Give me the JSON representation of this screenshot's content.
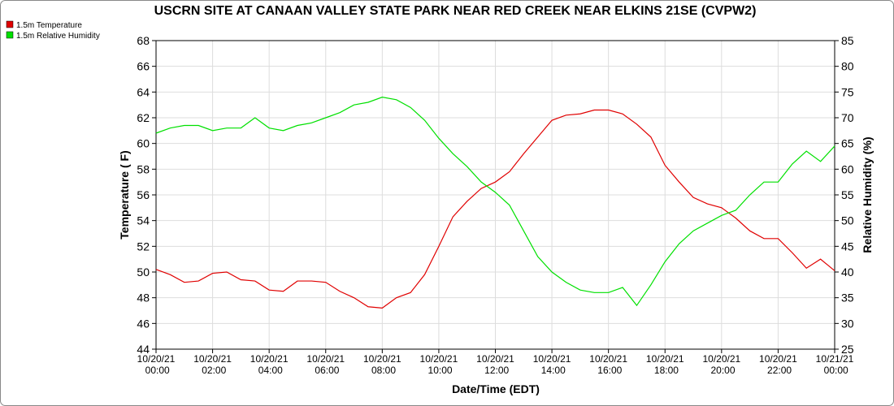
{
  "chart_data": {
    "type": "line",
    "title": "USCRN SITE AT CANAAN VALLEY STATE PARK NEAR RED CREEK NEAR ELKINS 21SE (CVPW2)",
    "xlabel": "Date/Time (EDT)",
    "ylabel": "Temperature ( F)",
    "y2label": "Relative Humidity (%)",
    "x": [
      "10/20/21 00:00",
      "10/20/21 00:30",
      "10/20/21 01:00",
      "10/20/21 01:30",
      "10/20/21 02:00",
      "10/20/21 02:30",
      "10/20/21 03:00",
      "10/20/21 03:30",
      "10/20/21 04:00",
      "10/20/21 04:30",
      "10/20/21 05:00",
      "10/20/21 05:30",
      "10/20/21 06:00",
      "10/20/21 06:30",
      "10/20/21 07:00",
      "10/20/21 07:30",
      "10/20/21 08:00",
      "10/20/21 08:30",
      "10/20/21 09:00",
      "10/20/21 09:30",
      "10/20/21 10:00",
      "10/20/21 10:30",
      "10/20/21 11:00",
      "10/20/21 11:30",
      "10/20/21 12:00",
      "10/20/21 12:30",
      "10/20/21 13:00",
      "10/20/21 13:30",
      "10/20/21 14:00",
      "10/20/21 14:30",
      "10/20/21 15:00",
      "10/20/21 15:30",
      "10/20/21 16:00",
      "10/20/21 16:30",
      "10/20/21 17:00",
      "10/20/21 17:30",
      "10/20/21 18:00",
      "10/20/21 18:30",
      "10/20/21 19:00",
      "10/20/21 19:30",
      "10/20/21 20:00",
      "10/20/21 20:30",
      "10/20/21 21:00",
      "10/20/21 21:30",
      "10/20/21 22:00",
      "10/20/21 22:30",
      "10/20/21 23:00",
      "10/20/21 23:30",
      "10/21/21 00:00"
    ],
    "series": [
      {
        "name": "1.5m Temperature",
        "color": "#e00000",
        "axis": "y",
        "values": [
          50.2,
          49.8,
          49.2,
          49.3,
          49.9,
          50.0,
          49.4,
          49.3,
          48.6,
          48.5,
          49.3,
          49.3,
          49.2,
          48.5,
          48.0,
          47.3,
          47.2,
          48.0,
          48.4,
          49.8,
          52.0,
          54.3,
          55.5,
          56.5,
          57.0,
          57.8,
          59.2,
          60.5,
          61.8,
          62.2,
          62.3,
          62.6,
          62.6,
          62.3,
          61.5,
          60.5,
          58.3,
          57.0,
          55.8,
          55.3,
          55.0,
          54.2,
          53.2,
          52.6,
          52.6,
          51.5,
          50.3,
          51.0,
          50.1
        ]
      },
      {
        "name": "1.5m Relative Humidity",
        "color": "#00e000",
        "axis": "y2",
        "values": [
          67,
          68,
          68.5,
          68.5,
          67.5,
          68,
          68,
          70,
          68,
          67.5,
          68.5,
          69,
          70,
          71,
          72.5,
          73,
          74,
          73.5,
          72,
          69.5,
          66,
          63,
          60.5,
          57.5,
          55.5,
          53,
          48,
          43,
          40,
          38,
          36.5,
          36,
          36,
          37,
          33.5,
          37.5,
          42,
          45.5,
          48,
          49.5,
          51,
          52,
          55,
          57.5,
          57.5,
          61,
          63.5,
          61.5,
          64.5
        ]
      }
    ],
    "xlim": [
      "10/20/21 00:00",
      "10/21/21 00:00"
    ],
    "xticks": [
      "10/20/21 00:00",
      "10/20/21 02:00",
      "10/20/21 04:00",
      "10/20/21 06:00",
      "10/20/21 08:00",
      "10/20/21 10:00",
      "10/20/21 12:00",
      "10/20/21 14:00",
      "10/20/21 16:00",
      "10/20/21 18:00",
      "10/20/21 20:00",
      "10/20/21 22:00",
      "10/21/21 00:00"
    ],
    "ylim": [
      44,
      68
    ],
    "yticks": [
      44,
      46,
      48,
      50,
      52,
      54,
      56,
      58,
      60,
      62,
      64,
      66,
      68
    ],
    "y2lim": [
      25,
      85
    ],
    "y2ticks": [
      25,
      30,
      35,
      40,
      45,
      50,
      55,
      60,
      65,
      70,
      75,
      80,
      85
    ],
    "grid": true,
    "legend": "upper left"
  }
}
